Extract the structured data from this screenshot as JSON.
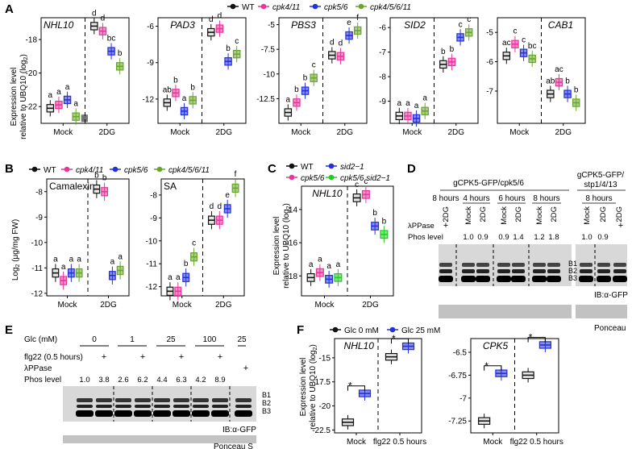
{
  "colors": {
    "wt": "#111111",
    "cpk4_11": "#e8359b",
    "cpk5_6": "#2430d8",
    "cpk4_5_6_11": "#6aa52b",
    "sid2": "#e8359b",
    "cpk56sid2": "#22cc22",
    "glc0": "#111111",
    "glc25": "#2430d8"
  },
  "panel_labels": {
    "a": "A",
    "b": "B",
    "c": "C",
    "d": "D",
    "e": "E",
    "f": "F"
  },
  "legends": {
    "a": [
      "WT",
      "cpk4/11",
      "cpk5/6",
      "cpk4/5/6/11"
    ],
    "b": [
      "WT",
      "cpk4/11",
      "cpk5/6",
      "cpk4/5/6/11"
    ],
    "c": [
      "WT",
      "cpk5/6",
      "sid2−1",
      "cpk5/6 sid2−1"
    ],
    "f": [
      "Glc 0 mM",
      "Glc 25 mM"
    ]
  },
  "axis_titles": {
    "a_y1": "Expression level",
    "a_y2": "relative to UBQ10 (log",
    "b_y": "Log",
    "c_y1": "Expression level",
    "c_y2": "relative to UBQ10 (log",
    "f_y1": "Expression level",
    "f_y2": "relative to UBQ10 (log",
    "sub2": "2",
    "b_unit": "(μg/mg FW)",
    "close": ")"
  },
  "chart_data": [
    {
      "id": "A1",
      "type": "box",
      "title": "NHL10",
      "xcats": [
        "Mock",
        "2DG"
      ],
      "yticks": [
        -18,
        -20,
        -22
      ],
      "ylim": [
        -23,
        -16.7
      ],
      "series": [
        [
          -22.1,
          -21.9,
          -21.6,
          -22.6,
          -22.7
        ],
        [
          -17.2,
          -17.5,
          -18.7,
          -19.6
        ]
      ],
      "letters": [
        [
          "a",
          "a",
          "a",
          "a"
        ],
        [
          "d",
          "d",
          "bc",
          "b"
        ]
      ]
    },
    {
      "id": "A2",
      "type": "box",
      "title": "PAD3",
      "xcats": [
        "Mock",
        "2DG"
      ],
      "yticks": [
        -6,
        -9,
        -12
      ],
      "ylim": [
        -14,
        -5.3
      ],
      "series": [
        [
          -12.3,
          -11.5,
          -13.0,
          -12.1
        ],
        [
          -6.5,
          -6.2,
          -8.9,
          -8.3
        ]
      ],
      "letters": [
        [
          "ab",
          "b",
          "a",
          "b"
        ],
        [
          "d",
          "d",
          "b",
          "c"
        ]
      ]
    },
    {
      "id": "A3",
      "type": "box",
      "title": "PBS3",
      "xcats": [
        "Mock",
        "2DG"
      ],
      "yticks": [
        -5.0,
        -7.5,
        -10.0,
        -12.5
      ],
      "ylim": [
        -15,
        -4.3
      ],
      "series": [
        [
          -13.9,
          -12.9,
          -11.7,
          -10.4
        ],
        [
          -8.1,
          -8.2,
          -6.1,
          -5.6
        ]
      ],
      "letters": [
        [
          "a",
          "b",
          "b",
          "c"
        ],
        [
          "d",
          "d",
          "e",
          "f"
        ]
      ]
    },
    {
      "id": "A4",
      "type": "box",
      "title": "SID2",
      "xcats": [
        "Mock",
        "2DG"
      ],
      "yticks": [
        -6,
        -7,
        -8,
        -9
      ],
      "ylim": [
        -9.9,
        -5.6
      ],
      "series": [
        [
          -9.6,
          -9.6,
          -9.7,
          -9.4
        ],
        [
          -7.5,
          -7.4,
          -6.4,
          -6.2
        ]
      ],
      "letters": [
        [
          "a",
          "a",
          "a",
          "a"
        ],
        [
          "b",
          "b",
          "c",
          "c"
        ]
      ]
    },
    {
      "id": "A5",
      "type": "box",
      "title": "CAB1",
      "xcats": [
        "Mock",
        "2DG"
      ],
      "yticks": [
        -5,
        -6,
        -7
      ],
      "ylim": [
        -8.1,
        -4.5
      ],
      "series": [
        [
          -5.8,
          -5.4,
          -5.7,
          -5.9
        ],
        [
          -7.1,
          -6.7,
          -7.1,
          -7.4
        ]
      ],
      "letters": [
        [
          "ac",
          "c",
          "c",
          "bc"
        ],
        [
          "ab",
          "ac",
          "b",
          "b"
        ]
      ]
    },
    {
      "id": "B1",
      "type": "box",
      "title": "Camalexin",
      "xcats": [
        "Mock",
        "2DG"
      ],
      "yticks": [
        -8,
        -9,
        -10,
        -11,
        -12
      ],
      "ylim": [
        -12.1,
        -7.5
      ],
      "series": [
        [
          -11.2,
          -11.5,
          -11.2,
          -11.2
        ],
        [
          -7.9,
          -8.0,
          -11.3,
          -11.1
        ]
      ],
      "letters": [
        [
          "a",
          "a",
          "a",
          "a"
        ],
        [
          "b",
          "b",
          "a",
          "a"
        ]
      ]
    },
    {
      "id": "B2",
      "type": "box",
      "title": "SA",
      "xcats": [
        "Mock",
        "2DG"
      ],
      "yticks": [
        -8,
        -9,
        -10,
        -11,
        -12
      ],
      "ylim": [
        -12.4,
        -7.3
      ],
      "series": [
        [
          -12.2,
          -12.2,
          -11.6,
          -10.7
        ],
        [
          -9.1,
          -9.1,
          -8.6,
          -7.7
        ]
      ],
      "letters": [
        [
          "a",
          "a",
          "b",
          "c"
        ],
        [
          "d",
          "d",
          "e",
          "f"
        ]
      ]
    },
    {
      "id": "C",
      "type": "box",
      "title": "NHL10",
      "xcats": [
        "Mock",
        "2DG"
      ],
      "yticks": [
        -14,
        -16,
        -18
      ],
      "ylim": [
        -19.2,
        -12.6
      ],
      "series": [
        [
          -18.1,
          -17.8,
          -18.2,
          -18.1
        ],
        [
          -13.3,
          -13.1,
          -15.0,
          -15.5
        ]
      ],
      "letters": [
        [
          "a",
          "a",
          "a",
          "a"
        ],
        [
          "c",
          "c",
          "b",
          "b"
        ]
      ]
    },
    {
      "id": "F1",
      "type": "box",
      "title": "NHL10",
      "xcats": [
        "Mock",
        "flg22 0.5 hours"
      ],
      "yticks": [
        -15.0,
        -17.5,
        -20.0,
        -22.5
      ],
      "ylim": [
        -22.8,
        -13.0
      ],
      "series": [
        [
          -21.7,
          -18.7
        ],
        [
          -14.9,
          -13.8
        ]
      ],
      "letters": [
        [
          "",
          ""
        ],
        [
          "",
          ""
        ]
      ],
      "stars": [
        "*",
        "*"
      ]
    },
    {
      "id": "F2",
      "type": "box",
      "title": "CPK5",
      "xcats": [
        "Mock",
        "flg22 0.5 hours"
      ],
      "yticks": [
        -6.5,
        -6.75,
        -7.0,
        -7.25
      ],
      "ylim": [
        -7.38,
        -6.35
      ],
      "series": [
        [
          -7.25,
          -6.73
        ],
        [
          -6.75,
          -6.42
        ]
      ],
      "letters": [
        [
          "",
          ""
        ],
        [
          "",
          ""
        ]
      ],
      "stars": [
        "*",
        "*"
      ]
    }
  ],
  "panel_d": {
    "title_main": "gCPK5-GFP/cpk5/6",
    "title_right1": "gCPK5-GFP/",
    "title_right2": "stp1/4/13",
    "time_labels": [
      "8 hours",
      "4 hours",
      "6 hours",
      "8 hours",
      "8 hours"
    ],
    "lane_labels": [
      "2DG",
      "Mock",
      "2DG",
      "Mock",
      "2DG",
      "Mock",
      "2DG",
      "Mock",
      "2DG",
      "2DG"
    ],
    "row_lambda": "λPPase",
    "row_phos": "Phos level",
    "lambda_plus": [
      "+",
      "+"
    ],
    "phos_main": [
      "1.0",
      "0.9",
      "0.9",
      "1.4",
      "1.2",
      "1.8"
    ],
    "phos_right": [
      "1.0",
      "0.9"
    ],
    "bands": [
      "B1",
      "B2",
      "B3"
    ],
    "ib": "IB:α-GFP",
    "ponceau": "Ponceau"
  },
  "panel_e": {
    "row_glc": "Glc (mM)",
    "row_flg": "flg22 (0.5 hours)",
    "row_lambda": "λPPase",
    "row_phos": "Phos level",
    "glc_values": [
      "0",
      "1",
      "25",
      "100",
      "25"
    ],
    "flg_plus": [
      "+",
      "+",
      "+",
      "+"
    ],
    "lambda_plus": "+",
    "phos": [
      "1.0",
      "3.8",
      "2.6",
      "6.2",
      "4.4",
      "6.3",
      "4.2",
      "8.9"
    ],
    "bands": [
      "B1",
      "B2",
      "B3"
    ],
    "ib": "IB:α-GFP",
    "ponceau": "Ponceau S"
  }
}
